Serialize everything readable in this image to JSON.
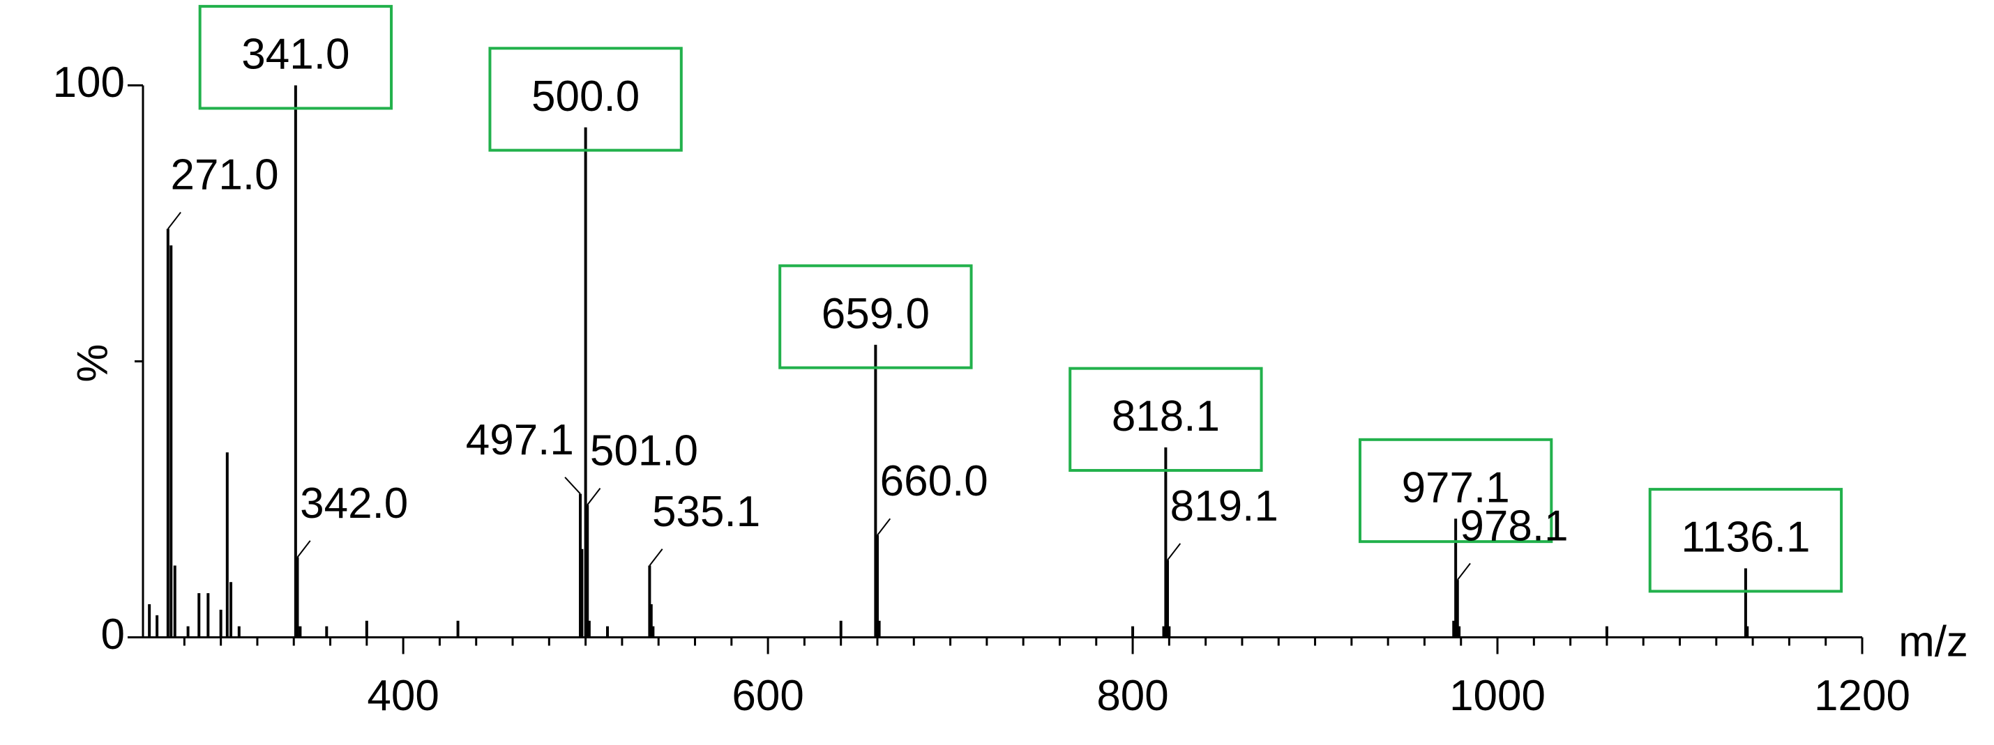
{
  "chart_data": {
    "type": "bar",
    "x_label": "m/z",
    "y_label": "%",
    "xlim": [
      257.3,
      1200
    ],
    "ylim": [
      0,
      100
    ],
    "xticks": [
      400,
      600,
      800,
      1000,
      1200
    ],
    "x_minor_ticks": [
      280,
      300,
      320,
      340,
      360,
      380,
      420,
      440,
      460,
      480,
      500,
      520,
      540,
      560,
      580,
      620,
      640,
      660,
      680,
      700,
      720,
      740,
      760,
      780,
      820,
      840,
      860,
      880,
      900,
      920,
      940,
      960,
      980,
      1020,
      1040,
      1060,
      1080,
      1100,
      1120,
      1140,
      1160,
      1180
    ],
    "yticks": [
      0,
      100
    ],
    "y_minor_ticks": [
      50
    ],
    "color": "#000000",
    "highlight_color": "#22b14c",
    "x": [
      260.8,
      265,
      271.0,
      272.7,
      274.8,
      282,
      288,
      293,
      300,
      303.5,
      305.5,
      310,
      341.0,
      342.0,
      343.5,
      358,
      380,
      430,
      497.1,
      498,
      500.0,
      501.0,
      502,
      512,
      535.1,
      536,
      537,
      640,
      659.0,
      660.0,
      661,
      800,
      817,
      818.1,
      819.1,
      820,
      976,
      977.1,
      978.1,
      979,
      1060,
      1136.1,
      1137
    ],
    "values": [
      6,
      4,
      74,
      71,
      13,
      2,
      8,
      8,
      5,
      33.5,
      10,
      2,
      100,
      14.5,
      2,
      2,
      3,
      3,
      26,
      16,
      92.4,
      24,
      3,
      2,
      13,
      6,
      2,
      3,
      53,
      18.5,
      3,
      2,
      2,
      34.4,
      14,
      2,
      3,
      21.5,
      10.4,
      2,
      2,
      12.5,
      2
    ],
    "x_labels": [
      null,
      null,
      "271.0",
      null,
      null,
      null,
      null,
      null,
      null,
      null,
      null,
      null,
      "341.0",
      "342.0",
      null,
      null,
      null,
      null,
      "497.1",
      null,
      "500.0",
      "501.0",
      null,
      null,
      "535.1",
      null,
      null,
      null,
      "659.0",
      "660.0",
      null,
      null,
      null,
      "818.1",
      "819.1",
      null,
      null,
      "977.1",
      "978.1",
      null,
      null,
      "1136.1",
      null
    ],
    "highlighted": [
      false,
      false,
      false,
      false,
      false,
      false,
      false,
      false,
      false,
      false,
      false,
      false,
      true,
      false,
      false,
      false,
      false,
      false,
      false,
      false,
      true,
      false,
      false,
      false,
      false,
      false,
      false,
      false,
      true,
      false,
      false,
      false,
      false,
      true,
      false,
      false,
      false,
      true,
      false,
      false,
      false,
      true,
      false
    ]
  }
}
